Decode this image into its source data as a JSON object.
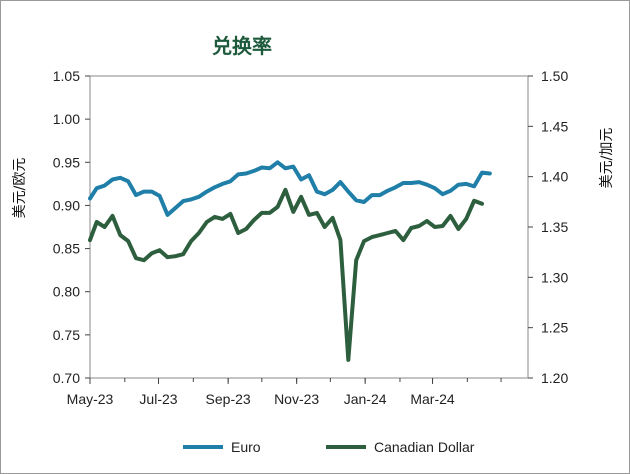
{
  "chart_data": {
    "type": "line",
    "title": "兑换率",
    "ylabel_left": "美元/欧元",
    "ylabel_right": "美元/加元",
    "xlim": [
      "2023-05-01",
      "2024-05-25"
    ],
    "x_ticks": [
      {
        "date": "2023-05-01",
        "label": "May-23"
      },
      {
        "date": "2023-07-01",
        "label": "Jul-23"
      },
      {
        "date": "2023-09-01",
        "label": "Sep-23"
      },
      {
        "date": "2023-11-01",
        "label": "Nov-23"
      },
      {
        "date": "2024-01-01",
        "label": "Jan-24"
      },
      {
        "date": "2024-03-01",
        "label": "Mar-24"
      }
    ],
    "ylim_left": [
      0.7,
      1.05
    ],
    "y_ticks_left": [
      "0.70",
      "0.75",
      "0.80",
      "0.85",
      "0.90",
      "0.95",
      "1.00",
      "1.05"
    ],
    "ylim_right": [
      1.2,
      1.5
    ],
    "y_ticks_right": [
      "1.20",
      "1.25",
      "1.30",
      "1.35",
      "1.40",
      "1.45",
      "1.50"
    ],
    "grid": false,
    "legend_position": "bottom",
    "series": [
      {
        "name": "Euro",
        "axis": "left",
        "color": "#1f7fa8",
        "points": [
          [
            "2023-05-01",
            0.908
          ],
          [
            "2023-05-07",
            0.92
          ],
          [
            "2023-05-14",
            0.923
          ],
          [
            "2023-05-21",
            0.93
          ],
          [
            "2023-05-28",
            0.932
          ],
          [
            "2023-06-04",
            0.928
          ],
          [
            "2023-06-11",
            0.912
          ],
          [
            "2023-06-18",
            0.916
          ],
          [
            "2023-06-25",
            0.916
          ],
          [
            "2023-07-02",
            0.911
          ],
          [
            "2023-07-09",
            0.889
          ],
          [
            "2023-07-16",
            0.897
          ],
          [
            "2023-07-23",
            0.905
          ],
          [
            "2023-07-30",
            0.907
          ],
          [
            "2023-08-06",
            0.91
          ],
          [
            "2023-08-13",
            0.916
          ],
          [
            "2023-08-20",
            0.921
          ],
          [
            "2023-08-27",
            0.925
          ],
          [
            "2023-09-03",
            0.928
          ],
          [
            "2023-09-10",
            0.936
          ],
          [
            "2023-09-17",
            0.937
          ],
          [
            "2023-09-24",
            0.94
          ],
          [
            "2023-10-01",
            0.944
          ],
          [
            "2023-10-08",
            0.943
          ],
          [
            "2023-10-15",
            0.95
          ],
          [
            "2023-10-22",
            0.943
          ],
          [
            "2023-10-29",
            0.945
          ],
          [
            "2023-11-05",
            0.93
          ],
          [
            "2023-11-12",
            0.935
          ],
          [
            "2023-11-19",
            0.916
          ],
          [
            "2023-11-26",
            0.913
          ],
          [
            "2023-12-03",
            0.918
          ],
          [
            "2023-12-10",
            0.927
          ],
          [
            "2023-12-17",
            0.916
          ],
          [
            "2023-12-24",
            0.906
          ],
          [
            "2023-12-31",
            0.904
          ],
          [
            "2024-01-07",
            0.912
          ],
          [
            "2024-01-14",
            0.912
          ],
          [
            "2024-01-21",
            0.917
          ],
          [
            "2024-01-28",
            0.921
          ],
          [
            "2024-02-04",
            0.926
          ],
          [
            "2024-02-11",
            0.926
          ],
          [
            "2024-02-18",
            0.927
          ],
          [
            "2024-02-25",
            0.924
          ],
          [
            "2024-03-03",
            0.92
          ],
          [
            "2024-03-10",
            0.913
          ],
          [
            "2024-03-17",
            0.917
          ],
          [
            "2024-03-24",
            0.924
          ],
          [
            "2024-03-31",
            0.925
          ],
          [
            "2024-04-07",
            0.922
          ],
          [
            "2024-04-14",
            0.938
          ],
          [
            "2024-04-21",
            0.937
          ]
        ]
      },
      {
        "name": "Canadian Dollar",
        "axis": "right",
        "color": "#2d5e3e",
        "points": [
          [
            "2023-05-01",
            1.337
          ],
          [
            "2023-05-07",
            1.355
          ],
          [
            "2023-05-14",
            1.35
          ],
          [
            "2023-05-21",
            1.361
          ],
          [
            "2023-05-28",
            1.342
          ],
          [
            "2023-06-04",
            1.336
          ],
          [
            "2023-06-11",
            1.319
          ],
          [
            "2023-06-18",
            1.317
          ],
          [
            "2023-06-25",
            1.324
          ],
          [
            "2023-07-02",
            1.327
          ],
          [
            "2023-07-09",
            1.32
          ],
          [
            "2023-07-16",
            1.321
          ],
          [
            "2023-07-23",
            1.323
          ],
          [
            "2023-07-30",
            1.336
          ],
          [
            "2023-08-06",
            1.344
          ],
          [
            "2023-08-13",
            1.355
          ],
          [
            "2023-08-20",
            1.36
          ],
          [
            "2023-08-27",
            1.358
          ],
          [
            "2023-09-03",
            1.363
          ],
          [
            "2023-09-10",
            1.344
          ],
          [
            "2023-09-17",
            1.348
          ],
          [
            "2023-09-24",
            1.357
          ],
          [
            "2023-10-01",
            1.364
          ],
          [
            "2023-10-08",
            1.364
          ],
          [
            "2023-10-15",
            1.37
          ],
          [
            "2023-10-22",
            1.387
          ],
          [
            "2023-10-29",
            1.365
          ],
          [
            "2023-11-05",
            1.38
          ],
          [
            "2023-11-12",
            1.362
          ],
          [
            "2023-11-19",
            1.364
          ],
          [
            "2023-11-26",
            1.35
          ],
          [
            "2023-12-03",
            1.359
          ],
          [
            "2023-12-10",
            1.337
          ],
          [
            "2023-12-17",
            1.218
          ],
          [
            "2023-12-24",
            1.317
          ],
          [
            "2023-12-31",
            1.336
          ],
          [
            "2024-01-07",
            1.34
          ],
          [
            "2024-01-14",
            1.342
          ],
          [
            "2024-01-21",
            1.344
          ],
          [
            "2024-01-28",
            1.346
          ],
          [
            "2024-02-04",
            1.337
          ],
          [
            "2024-02-11",
            1.349
          ],
          [
            "2024-02-18",
            1.351
          ],
          [
            "2024-02-25",
            1.356
          ],
          [
            "2024-03-03",
            1.35
          ],
          [
            "2024-03-10",
            1.351
          ],
          [
            "2024-03-17",
            1.361
          ],
          [
            "2024-03-24",
            1.348
          ],
          [
            "2024-03-31",
            1.358
          ],
          [
            "2024-04-07",
            1.376
          ],
          [
            "2024-04-14",
            1.373
          ]
        ]
      }
    ]
  }
}
